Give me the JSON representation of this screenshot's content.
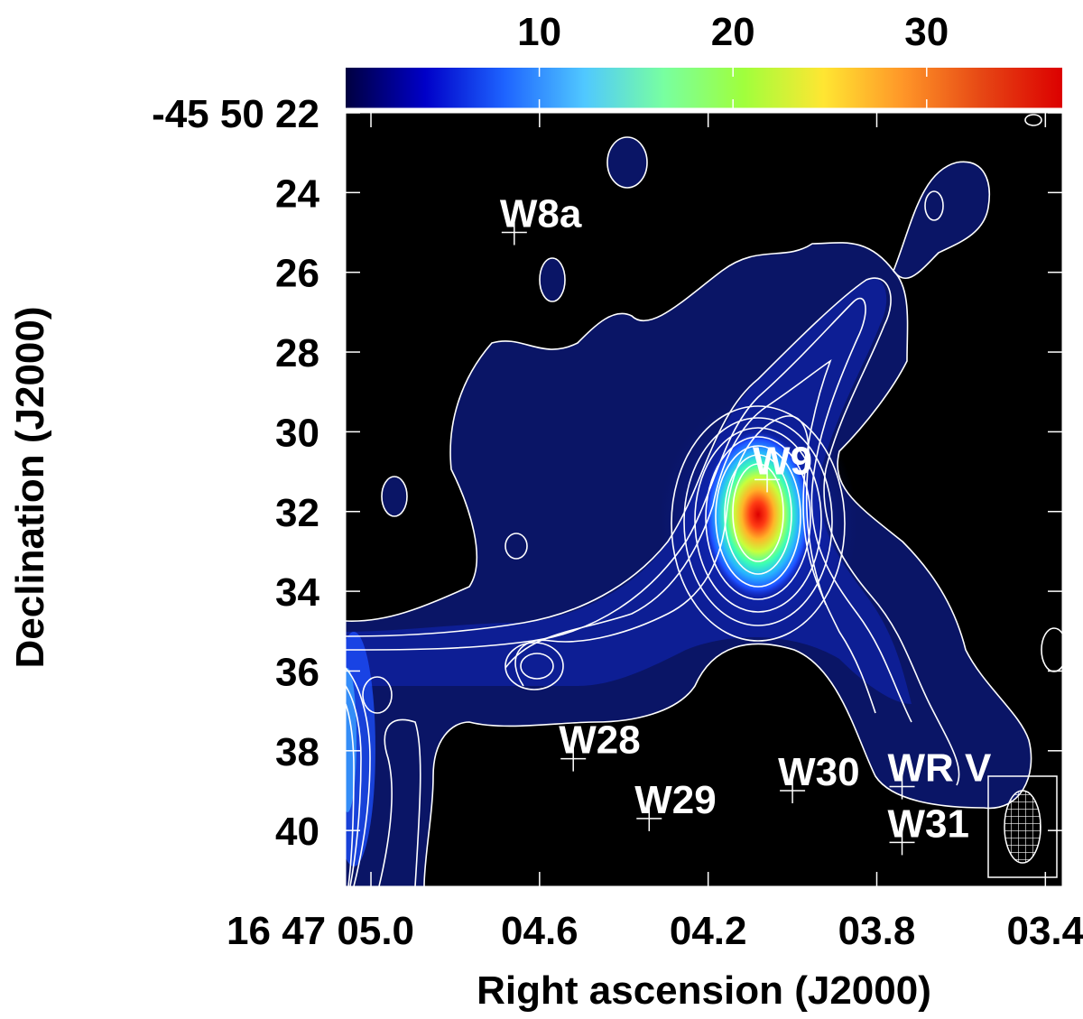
{
  "chart_data": {
    "type": "heatmap",
    "colorbar": {
      "range": [
        0,
        37
      ],
      "ticks": [
        10,
        20,
        30
      ],
      "tick_labels": [
        "10",
        "20",
        "30"
      ],
      "colormap": [
        "#000040",
        "#0000c8",
        "#1e64ff",
        "#50c8ff",
        "#78ffa0",
        "#a0ff3c",
        "#ffe632",
        "#ff9628",
        "#e64614",
        "#dc0000"
      ]
    },
    "xaxis": {
      "label": "Right ascension (J2000)",
      "range": [
        5.06,
        3.36
      ],
      "ticks": [
        5.0,
        4.6,
        4.2,
        3.8,
        3.4
      ],
      "tick_labels": [
        "16 47 05.0",
        "04.6",
        "04.2",
        "03.8",
        "03.4"
      ]
    },
    "yaxis": {
      "label": "Declination (J2000)",
      "range": [
        22,
        41.4
      ],
      "ticks": [
        22,
        24,
        26,
        28,
        30,
        32,
        34,
        36,
        38,
        40
      ],
      "tick_labels": [
        "-45 50 22",
        "24",
        "26",
        "28",
        "30",
        "32",
        "34",
        "36",
        "38",
        "40"
      ]
    },
    "peak": {
      "x": 4.06,
      "y": 31.8
    },
    "sources": [
      {
        "name": "W8a",
        "x": 4.66,
        "y": 25.0
      },
      {
        "name": "W9",
        "x": 4.06,
        "y": 31.2
      },
      {
        "name": "W28",
        "x": 4.52,
        "y": 38.2
      },
      {
        "name": "W29",
        "x": 4.34,
        "y": 39.7
      },
      {
        "name": "W30",
        "x": 4.0,
        "y": 39.0
      },
      {
        "name": "WR V",
        "x": 3.74,
        "y": 38.9
      },
      {
        "name": "W31",
        "x": 3.74,
        "y": 40.3
      }
    ],
    "grid": false,
    "background": "#000000",
    "contour_color": "#ffffff"
  }
}
